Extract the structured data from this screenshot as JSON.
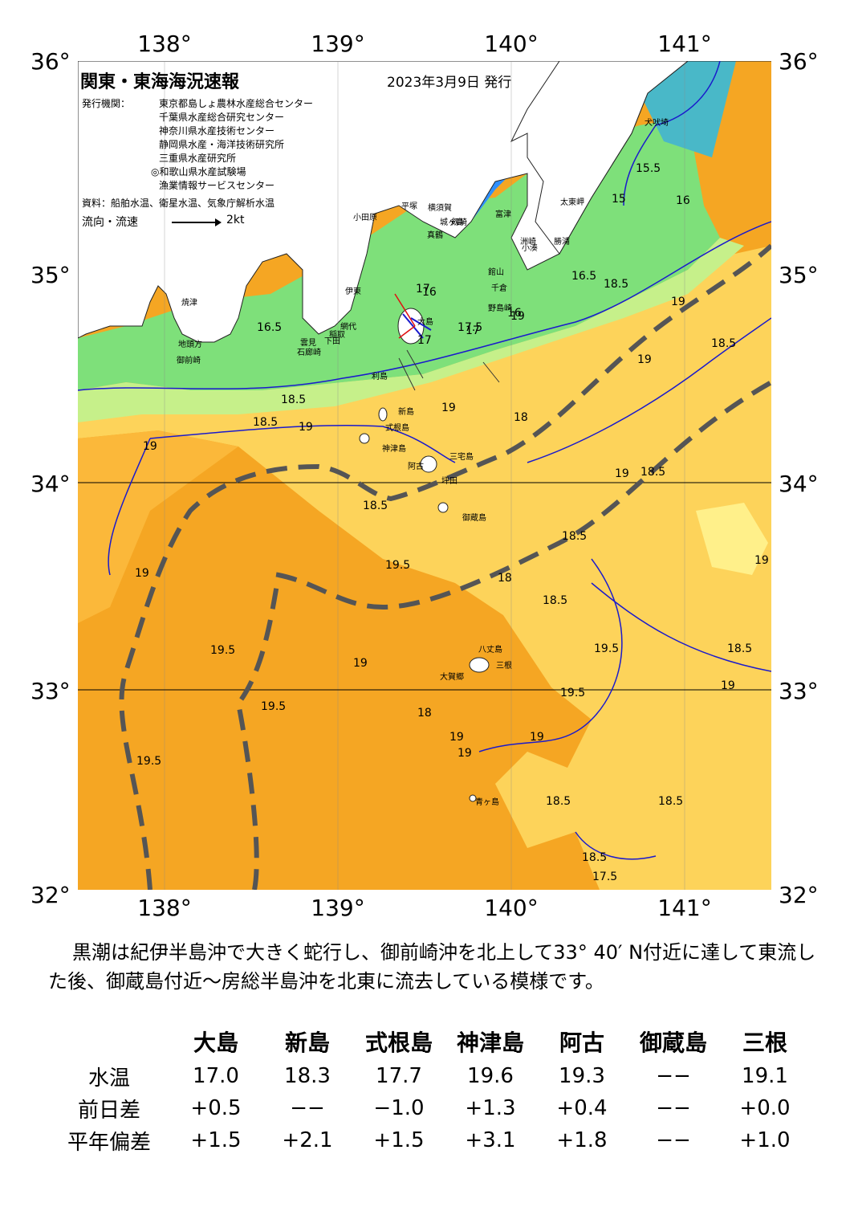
{
  "map": {
    "title": "関東・東海海況速報",
    "issued": "2023年3月9日 発行",
    "agency_label": "発行機関：",
    "agencies": [
      "東京都島しょ農林水産総合センター",
      "千葉県水産総合研究センター",
      "神奈川県水産技術センター",
      "静岡県水産・海洋技術研究所",
      "三重県水産研究所",
      "◎和歌山県水産試験場",
      "漁業情報サービスセンター"
    ],
    "source": "資料：船舶水温、衛星水温、気象庁解析水温",
    "flow_label": "流向・流速",
    "flow_scale": "2kt",
    "lon_labels": [
      "138°",
      "139°",
      "140°",
      "141°"
    ],
    "lat_labels": [
      "36°",
      "35°",
      "34°",
      "33°",
      "32°"
    ],
    "place_names": [
      "犬吠埼",
      "太東岬",
      "洲崎",
      "館山",
      "千倉",
      "野島崎",
      "小湊",
      "勝浦",
      "富津",
      "横須賀",
      "城ヶ島",
      "剱崎",
      "平塚",
      "小田原",
      "真鶴",
      "伊東",
      "網代",
      "稲取",
      "下田",
      "石廊崎",
      "雲見",
      "焼津",
      "地頭方",
      "御前崎",
      "大島",
      "利島",
      "新島",
      "式根島",
      "神津島",
      "三宅島",
      "阿古",
      "御蔵島",
      "八丈島",
      "三根",
      "大賀郷",
      "青ヶ島",
      "坪田"
    ],
    "contour_labels": [
      "15.5",
      "15",
      "16",
      "16.5",
      "18.5",
      "19",
      "16.5",
      "17",
      "17.5",
      "16",
      "18.5",
      "19",
      "19",
      "18",
      "18.5",
      "18.5",
      "19",
      "19",
      "18.5",
      "19",
      "18.5",
      "19.5",
      "19.5",
      "19",
      "18",
      "19.5",
      "19.5",
      "19.5",
      "19.5",
      "18.5",
      "19",
      "19",
      "18.5",
      "19",
      "18.5",
      "18.5",
      "18.5",
      "17.5",
      "18.5",
      "18",
      "19",
      "19",
      "19",
      "19",
      "16",
      "17",
      "17"
    ]
  },
  "description": "黒潮は紀伊半島沖で大きく蛇行し、御前崎沖を北上して33° 40′ N付近に達して東流した後、御蔵島付近〜房総半島沖を北東に流去している模様です。",
  "table": {
    "headers": [
      "",
      "大島",
      "新島",
      "式根島",
      "神津島",
      "阿古",
      "御蔵島",
      "三根"
    ],
    "rows": [
      {
        "label": "水温",
        "values": [
          "17.0",
          "18.3",
          "17.7",
          "19.6",
          "19.3",
          "−−",
          "19.1"
        ]
      },
      {
        "label": "前日差",
        "values": [
          "+0.5",
          "−−",
          "−1.0",
          "+1.3",
          "+0.4",
          "−−",
          "+0.0"
        ]
      },
      {
        "label": "平年偏差",
        "values": [
          "+1.5",
          "+2.1",
          "+1.5",
          "+3.1",
          "+1.8",
          "−−",
          "+1.0"
        ]
      }
    ]
  },
  "colors": {
    "kuroshio_axis": "#555555",
    "contour": "#1a1acc",
    "land": "#ffffff",
    "warm": "#f5a623",
    "mid": "#fdd35a",
    "cool": "#7ee07a",
    "cold": "#2e8fff"
  }
}
